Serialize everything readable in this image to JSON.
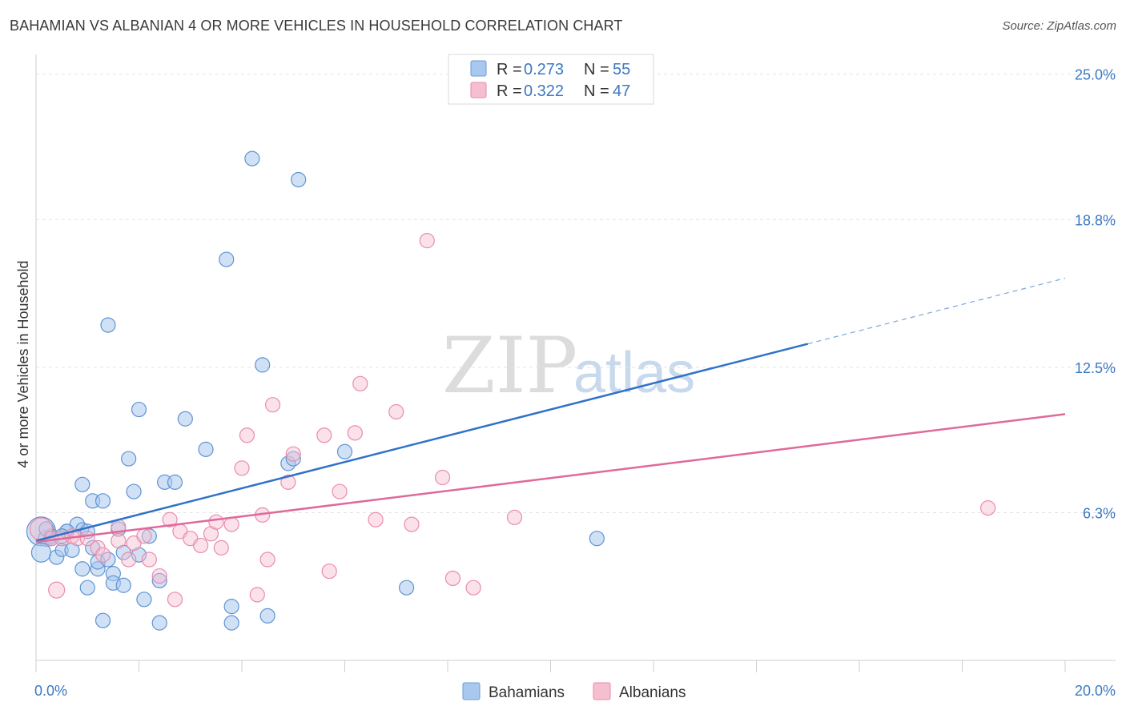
{
  "header": {
    "title": "BAHAMIAN VS ALBANIAN 4 OR MORE VEHICLES IN HOUSEHOLD CORRELATION CHART",
    "source": "Source: ZipAtlas.com"
  },
  "watermark": {
    "zip": "ZIP",
    "atlas": "atlas"
  },
  "legend": {
    "entries": [
      {
        "r_label": "R = ",
        "r_value": "0.273",
        "n_label": "N = ",
        "n_value": "55",
        "color": "#a9c8ef",
        "stroke": "#6a9bd6"
      },
      {
        "r_label": "R = ",
        "r_value": "0.322",
        "n_label": "N = ",
        "n_value": "47",
        "color": "#f6bfd0",
        "stroke": "#e88aa8"
      }
    ]
  },
  "bottom_legend": {
    "items": [
      "Bahamians",
      "Albanians"
    ]
  },
  "colors": {
    "blue": "#3b78c4",
    "blue_fill": "#a9c8ef",
    "pink": "#e0699a",
    "pink_fill": "#f6bfd0",
    "axis_text": "#3b78c4"
  },
  "chart_data": {
    "type": "scatter",
    "title": "BAHAMIAN VS ALBANIAN 4 OR MORE VEHICLES IN HOUSEHOLD CORRELATION CHART",
    "xlabel": "",
    "ylabel": "4 or more Vehicles in Household",
    "xlim": [
      0,
      20
    ],
    "ylim": [
      0,
      25.5
    ],
    "x_tick_labels": [
      "0.0%",
      "20.0%"
    ],
    "y_ticks": [
      6.3,
      12.5,
      18.8,
      25.0
    ],
    "y_tick_labels": [
      "6.3%",
      "12.5%",
      "18.8%",
      "25.0%"
    ],
    "grid": true,
    "legend_position": "top-center",
    "series": [
      {
        "name": "Bahamians",
        "r": 0.273,
        "n": 55,
        "trend": {
          "x0": 0,
          "y0": 5.1,
          "x1": 15.0,
          "y1": 13.5,
          "dashed_to_x": 20.0,
          "dashed_to_y": 16.3
        },
        "points": [
          [
            0.1,
            5.5,
            18
          ],
          [
            0.2,
            5.2,
            10
          ],
          [
            0.3,
            5.3,
            9
          ],
          [
            0.4,
            4.4,
            9
          ],
          [
            0.5,
            4.7,
            8
          ],
          [
            0.6,
            5.5,
            9
          ],
          [
            0.7,
            4.7,
            9
          ],
          [
            0.8,
            5.8,
            9
          ],
          [
            0.9,
            5.6,
            8
          ],
          [
            0.9,
            3.9,
            9
          ],
          [
            1.0,
            3.1,
            9
          ],
          [
            0.9,
            7.5,
            9
          ],
          [
            1.1,
            4.8,
            9
          ],
          [
            1.1,
            6.8,
            9
          ],
          [
            1.3,
            6.8,
            9
          ],
          [
            1.2,
            3.9,
            9
          ],
          [
            1.2,
            4.2,
            9
          ],
          [
            1.3,
            1.7,
            9
          ],
          [
            1.4,
            4.3,
            9
          ],
          [
            1.4,
            14.3,
            9
          ],
          [
            1.5,
            3.7,
            9
          ],
          [
            1.5,
            3.3,
            9
          ],
          [
            1.6,
            5.6,
            9
          ],
          [
            1.7,
            4.6,
            9
          ],
          [
            1.7,
            3.2,
            9
          ],
          [
            1.8,
            8.6,
            9
          ],
          [
            1.9,
            7.2,
            9
          ],
          [
            2.0,
            10.7,
            9
          ],
          [
            2.0,
            4.5,
            9
          ],
          [
            2.1,
            2.6,
            9
          ],
          [
            2.2,
            5.3,
            9
          ],
          [
            2.4,
            3.4,
            9
          ],
          [
            2.4,
            1.6,
            9
          ],
          [
            2.5,
            7.6,
            9
          ],
          [
            2.7,
            7.6,
            9
          ],
          [
            2.9,
            10.3,
            9
          ],
          [
            3.3,
            9.0,
            9
          ],
          [
            3.7,
            17.1,
            9
          ],
          [
            3.8,
            1.6,
            9
          ],
          [
            3.8,
            2.3,
            9
          ],
          [
            4.2,
            21.4,
            9
          ],
          [
            4.4,
            12.6,
            9
          ],
          [
            4.5,
            1.9,
            9
          ],
          [
            4.9,
            8.4,
            9
          ],
          [
            5.0,
            8.6,
            9
          ],
          [
            5.1,
            20.5,
            9
          ],
          [
            6.0,
            8.9,
            9
          ],
          [
            7.2,
            3.1,
            9
          ],
          [
            10.9,
            5.2,
            9
          ],
          [
            0.3,
            5.2,
            9
          ],
          [
            0.6,
            5.5,
            9
          ],
          [
            1.0,
            5.5,
            9
          ],
          [
            0.5,
            5.3,
            9
          ],
          [
            0.2,
            5.6,
            9
          ],
          [
            0.1,
            4.6,
            12
          ]
        ]
      },
      {
        "name": "Albanians",
        "r": 0.322,
        "n": 47,
        "trend": {
          "x0": 0,
          "y0": 5.05,
          "x1": 20.0,
          "y1": 10.5
        },
        "points": [
          [
            0.1,
            5.6,
            14
          ],
          [
            0.3,
            5.2,
            9
          ],
          [
            0.4,
            3.0,
            10
          ],
          [
            0.5,
            5.2,
            9
          ],
          [
            0.7,
            5.3,
            9
          ],
          [
            0.8,
            5.2,
            9
          ],
          [
            1.0,
            5.2,
            9
          ],
          [
            1.2,
            4.8,
            9
          ],
          [
            1.3,
            4.5,
            9
          ],
          [
            1.6,
            5.7,
            9
          ],
          [
            1.6,
            5.1,
            9
          ],
          [
            1.8,
            4.3,
            9
          ],
          [
            1.9,
            5.0,
            9
          ],
          [
            2.1,
            5.3,
            9
          ],
          [
            2.2,
            4.3,
            9
          ],
          [
            2.4,
            3.6,
            9
          ],
          [
            2.6,
            6.0,
            9
          ],
          [
            2.7,
            2.6,
            9
          ],
          [
            2.8,
            5.5,
            9
          ],
          [
            3.0,
            5.2,
            9
          ],
          [
            3.2,
            4.9,
            9
          ],
          [
            3.4,
            5.4,
            9
          ],
          [
            3.5,
            5.9,
            9
          ],
          [
            3.6,
            4.8,
            9
          ],
          [
            3.8,
            5.8,
            9
          ],
          [
            4.0,
            8.2,
            9
          ],
          [
            4.1,
            9.6,
            9
          ],
          [
            4.3,
            2.8,
            9
          ],
          [
            4.4,
            6.2,
            9
          ],
          [
            4.5,
            4.3,
            9
          ],
          [
            4.6,
            10.9,
            9
          ],
          [
            4.9,
            7.6,
            9
          ],
          [
            5.0,
            8.8,
            9
          ],
          [
            5.6,
            9.6,
            9
          ],
          [
            5.7,
            3.8,
            9
          ],
          [
            5.9,
            7.2,
            9
          ],
          [
            6.2,
            9.7,
            9
          ],
          [
            6.3,
            11.8,
            9
          ],
          [
            6.6,
            6.0,
            9
          ],
          [
            7.0,
            10.6,
            9
          ],
          [
            7.3,
            5.8,
            9
          ],
          [
            7.6,
            17.9,
            9
          ],
          [
            7.9,
            7.8,
            9
          ],
          [
            8.1,
            3.5,
            9
          ],
          [
            8.5,
            3.1,
            9
          ],
          [
            9.3,
            6.1,
            9
          ],
          [
            18.5,
            6.5,
            9
          ]
        ]
      }
    ]
  }
}
